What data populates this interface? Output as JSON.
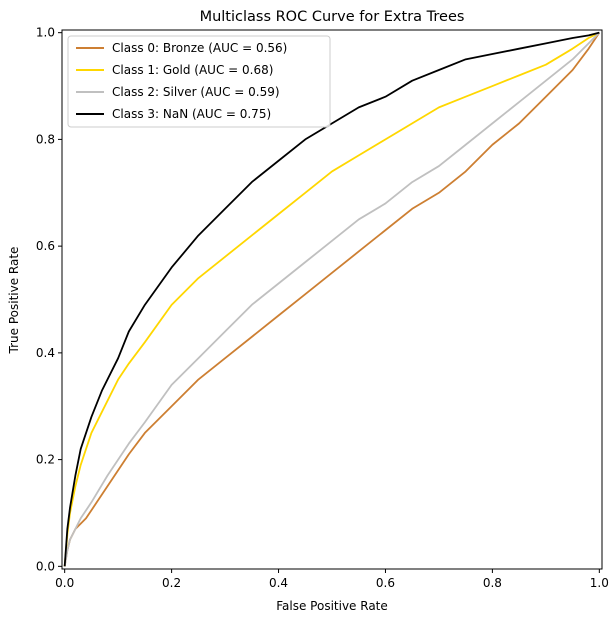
{
  "chart_data": {
    "type": "line",
    "title": "Multiclass ROC Curve for Extra Trees",
    "xlabel": "False Positive Rate",
    "ylabel": "True Positive Rate",
    "xlim": [
      -0.005,
      1.005
    ],
    "ylim": [
      -0.005,
      1.005
    ],
    "x_ticks": [
      0.0,
      0.2,
      0.4,
      0.6,
      0.8,
      1.0
    ],
    "y_ticks": [
      0.0,
      0.2,
      0.4,
      0.6,
      0.8,
      1.0
    ],
    "x_tick_labels": [
      "0.0",
      "0.2",
      "0.4",
      "0.6",
      "0.8",
      "1.0"
    ],
    "y_tick_labels": [
      "0.0",
      "0.2",
      "0.4",
      "0.6",
      "0.8",
      "1.0"
    ],
    "grid": false,
    "legend_position": "top-left",
    "series": [
      {
        "name": "Class 0: Bronze (AUC = 0.56)",
        "color": "#CD7F32",
        "x": [
          0.0,
          0.005,
          0.01,
          0.02,
          0.04,
          0.06,
          0.08,
          0.1,
          0.12,
          0.15,
          0.2,
          0.25,
          0.3,
          0.35,
          0.4,
          0.45,
          0.5,
          0.55,
          0.6,
          0.65,
          0.7,
          0.75,
          0.8,
          0.85,
          0.9,
          0.95,
          0.98,
          1.0
        ],
        "y": [
          0.0,
          0.03,
          0.05,
          0.07,
          0.09,
          0.12,
          0.15,
          0.18,
          0.21,
          0.25,
          0.3,
          0.35,
          0.39,
          0.43,
          0.47,
          0.51,
          0.55,
          0.59,
          0.63,
          0.67,
          0.7,
          0.74,
          0.79,
          0.83,
          0.88,
          0.93,
          0.97,
          1.0
        ]
      },
      {
        "name": "Class 1: Gold (AUC = 0.68)",
        "color": "#FFD700",
        "x": [
          0.0,
          0.005,
          0.01,
          0.02,
          0.03,
          0.05,
          0.07,
          0.1,
          0.12,
          0.15,
          0.2,
          0.25,
          0.3,
          0.35,
          0.4,
          0.45,
          0.5,
          0.55,
          0.6,
          0.65,
          0.7,
          0.75,
          0.8,
          0.85,
          0.9,
          0.95,
          0.98,
          1.0
        ],
        "y": [
          0.0,
          0.06,
          0.1,
          0.15,
          0.19,
          0.25,
          0.29,
          0.35,
          0.38,
          0.42,
          0.49,
          0.54,
          0.58,
          0.62,
          0.66,
          0.7,
          0.74,
          0.77,
          0.8,
          0.83,
          0.86,
          0.88,
          0.9,
          0.92,
          0.94,
          0.97,
          0.99,
          1.0
        ]
      },
      {
        "name": "Class 2: Silver (AUC = 0.59)",
        "color": "#C0C0C0",
        "x": [
          0.0,
          0.005,
          0.01,
          0.02,
          0.03,
          0.05,
          0.08,
          0.1,
          0.12,
          0.15,
          0.2,
          0.25,
          0.3,
          0.35,
          0.4,
          0.45,
          0.5,
          0.55,
          0.6,
          0.65,
          0.7,
          0.75,
          0.8,
          0.85,
          0.9,
          0.95,
          0.98,
          1.0
        ],
        "y": [
          0.0,
          0.03,
          0.05,
          0.07,
          0.09,
          0.12,
          0.17,
          0.2,
          0.23,
          0.27,
          0.34,
          0.39,
          0.44,
          0.49,
          0.53,
          0.57,
          0.61,
          0.65,
          0.68,
          0.72,
          0.75,
          0.79,
          0.83,
          0.87,
          0.91,
          0.95,
          0.98,
          1.0
        ]
      },
      {
        "name": "Class 3: NaN (AUC = 0.75)",
        "color": "#000000",
        "x": [
          0.0,
          0.005,
          0.01,
          0.02,
          0.03,
          0.05,
          0.07,
          0.1,
          0.12,
          0.15,
          0.2,
          0.25,
          0.3,
          0.35,
          0.4,
          0.45,
          0.5,
          0.55,
          0.6,
          0.65,
          0.7,
          0.75,
          0.8,
          0.85,
          0.9,
          0.95,
          0.98,
          1.0
        ],
        "y": [
          0.0,
          0.07,
          0.11,
          0.17,
          0.22,
          0.28,
          0.33,
          0.39,
          0.44,
          0.49,
          0.56,
          0.62,
          0.67,
          0.72,
          0.76,
          0.8,
          0.83,
          0.86,
          0.88,
          0.91,
          0.93,
          0.95,
          0.96,
          0.97,
          0.98,
          0.99,
          0.995,
          1.0
        ]
      }
    ]
  }
}
